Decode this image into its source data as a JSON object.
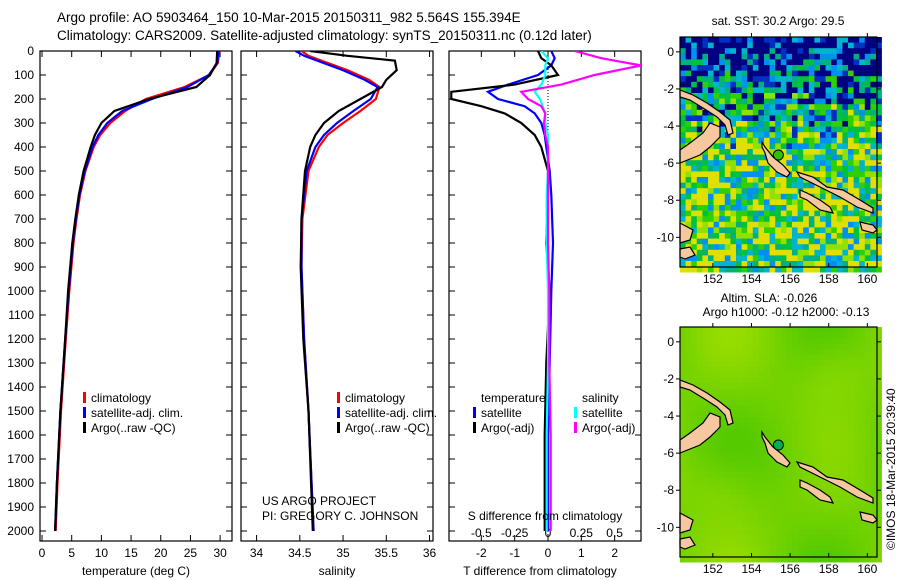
{
  "header": {
    "line1": "Argo profile: AO 5903464_150 10-Mar-2015 20150311_982 5.564S 155.394E",
    "line2": "Climatology: CARS2009. Satellite-adjusted climatology: synTS_20150311.nc (0.12d later)"
  },
  "credits": {
    "project": "US ARGO PROJECT",
    "pi": "PI: GREGORY C. JOHNSON",
    "footer": "©IMOS 18-Mar-2015 20:39:40"
  },
  "colors": {
    "climatology": "#ff0000",
    "satellite": "#0000ff",
    "argo": "#000000",
    "salinity_satellite": "#00ffff",
    "salinity_argo": "#ff00ff",
    "land": "#f5c8a0"
  },
  "chart_data": [
    {
      "type": "line",
      "name": "temperature-profile",
      "xlabel": "temperature (deg C)",
      "ylabel": "depth",
      "xlim": [
        -0.34,
        32.0
      ],
      "ylim": [
        2040,
        0
      ],
      "xticks": [
        0,
        5,
        10,
        15,
        20,
        25,
        30
      ],
      "yticks": [
        0,
        100,
        200,
        300,
        400,
        500,
        600,
        700,
        800,
        900,
        1000,
        1100,
        1200,
        1300,
        1400,
        1500,
        1600,
        1700,
        1800,
        1900,
        2000
      ],
      "legend": [
        "climatology",
        "satellite-adj. clim.",
        "Argo(..raw -QC)"
      ],
      "depth": [
        0,
        50,
        100,
        150,
        200,
        250,
        300,
        350,
        400,
        500,
        600,
        700,
        800,
        1000,
        1200,
        1500,
        1800,
        2000
      ],
      "series": [
        {
          "name": "climatology",
          "color": "#ff0000",
          "values": [
            29.9,
            29.6,
            28.2,
            24.0,
            17.5,
            14.0,
            11.5,
            9.8,
            8.7,
            7.3,
            6.4,
            5.8,
            5.3,
            4.6,
            4.0,
            3.2,
            2.6,
            2.3
          ]
        },
        {
          "name": "satellite-adj. clim.",
          "color": "#0000ff",
          "values": [
            29.8,
            29.5,
            28.1,
            24.5,
            18.5,
            13.5,
            11.0,
            9.5,
            8.5,
            7.2,
            6.3,
            5.7,
            5.2,
            4.5,
            3.9,
            3.1,
            2.5,
            2.2
          ]
        },
        {
          "name": "Argo(..raw -QC)",
          "color": "#000000",
          "values": [
            29.5,
            29.4,
            28.3,
            26.0,
            18.0,
            12.2,
            10.0,
            8.9,
            8.2,
            7.0,
            6.2,
            5.6,
            5.1,
            4.4,
            3.9,
            3.1,
            2.5,
            2.2
          ]
        }
      ]
    },
    {
      "type": "line",
      "name": "salinity-profile",
      "xlabel": "salinity",
      "xlim": [
        33.82,
        36.04
      ],
      "ylim": [
        2040,
        0
      ],
      "xticks": [
        34,
        34.5,
        35,
        35.5,
        36
      ],
      "legend": [
        "climatology",
        "satellite-adj. clim.",
        "Argo(..raw -QC)"
      ],
      "depth": [
        0,
        20,
        40,
        80,
        120,
        150,
        200,
        250,
        300,
        350,
        400,
        500,
        700,
        900,
        1200,
        1500,
        2000
      ],
      "series": [
        {
          "name": "climatology",
          "color": "#ff0000",
          "values": [
            34.52,
            34.6,
            34.75,
            35.05,
            35.3,
            35.42,
            35.38,
            35.2,
            35.0,
            34.82,
            34.72,
            34.6,
            34.53,
            34.52,
            34.55,
            34.6,
            34.66
          ]
        },
        {
          "name": "satellite-adj. clim.",
          "color": "#0000ff",
          "values": [
            34.45,
            34.55,
            34.7,
            35.0,
            35.25,
            35.4,
            35.32,
            35.12,
            34.93,
            34.78,
            34.68,
            34.58,
            34.52,
            34.52,
            34.55,
            34.6,
            34.66
          ]
        },
        {
          "name": "Argo(..raw -QC)",
          "color": "#000000",
          "values": [
            34.62,
            35.05,
            35.6,
            35.62,
            35.5,
            35.45,
            35.2,
            34.95,
            34.78,
            34.68,
            34.62,
            34.56,
            34.52,
            34.51,
            34.54,
            34.6,
            34.65
          ]
        }
      ]
    },
    {
      "type": "line",
      "name": "difference-profile",
      "xlabel": "T difference from climatology",
      "x2label": "S difference from climatology",
      "xlim": [
        -2.97,
        2.79
      ],
      "x2lim": [
        -0.743,
        0.698
      ],
      "xticks": [
        -2,
        -1,
        0,
        1,
        2
      ],
      "x2ticks": [
        -0.5,
        -0.25,
        0,
        0.25,
        0.5
      ],
      "legend_headers": [
        "temperature",
        "salinity"
      ],
      "legend": [
        "satellite",
        "Argo(-adj)",
        "satellite",
        "Argo(-adj)"
      ],
      "depth": [
        0,
        30,
        60,
        100,
        140,
        170,
        200,
        230,
        260,
        300,
        350,
        400,
        500,
        600,
        800,
        1000,
        1300,
        1600,
        2000
      ],
      "series": [
        {
          "name": "T satellite",
          "axis": "T",
          "color": "#0000ff",
          "values": [
            0.1,
            0.2,
            0.1,
            -0.3,
            -1.2,
            -1.8,
            -1.5,
            -0.7,
            -0.4,
            -0.2,
            -0.1,
            -0.05,
            0.05,
            0.1,
            0.15,
            0.1,
            0.05,
            0.0,
            0.0
          ]
        },
        {
          "name": "T Argo(-adj)",
          "axis": "T",
          "color": "#000000",
          "values": [
            -0.3,
            -0.2,
            0.1,
            0.3,
            -1.0,
            -2.9,
            -2.9,
            -2.0,
            -1.3,
            -0.8,
            -0.4,
            -0.2,
            0.0,
            0.0,
            -0.05,
            0.05,
            -0.05,
            -0.1,
            -0.1
          ]
        },
        {
          "name": "S satellite",
          "axis": "S",
          "color": "#00ffff",
          "values": [
            -0.05,
            0.0,
            -0.02,
            -0.02,
            -0.05,
            -0.1,
            -0.06,
            -0.04,
            -0.02,
            -0.02,
            0.0,
            0.0,
            0.0,
            -0.01,
            -0.01,
            0.0,
            0.0,
            -0.01,
            -0.01
          ]
        },
        {
          "name": "S Argo(-adj)",
          "axis": "S",
          "color": "#ff00ff",
          "values": [
            0.2,
            0.4,
            0.7,
            0.35,
            0.1,
            -0.2,
            -0.15,
            -0.05,
            -0.02,
            -0.03,
            -0.02,
            0.0,
            0.0,
            0.0,
            0.0,
            0.01,
            0.01,
            0.02,
            0.02
          ]
        }
      ]
    },
    {
      "type": "heatmap",
      "name": "sst-map",
      "title": "sat. SST: 30.2 Argo: 29.5",
      "xlim": [
        150.3,
        160.5
      ],
      "ylim": [
        -11.6,
        0.8
      ],
      "xticks": [
        152,
        154,
        156,
        158,
        160
      ],
      "yticks": [
        0,
        -2,
        -4,
        -6,
        -8,
        -10
      ],
      "argo_position": {
        "lon": 155.394,
        "lat": -5.564
      }
    },
    {
      "type": "heatmap",
      "name": "sla-map",
      "title": "Altim. SLA: -0.026",
      "subtitle": "Argo h1000: -0.12 h2000: -0.13",
      "xlim": [
        150.3,
        160.5
      ],
      "ylim": [
        -11.6,
        0.8
      ],
      "xticks": [
        152,
        154,
        156,
        158,
        160
      ],
      "yticks": [
        0,
        -2,
        -4,
        -6,
        -8,
        -10
      ],
      "argo_position": {
        "lon": 155.394,
        "lat": -5.564
      }
    }
  ]
}
